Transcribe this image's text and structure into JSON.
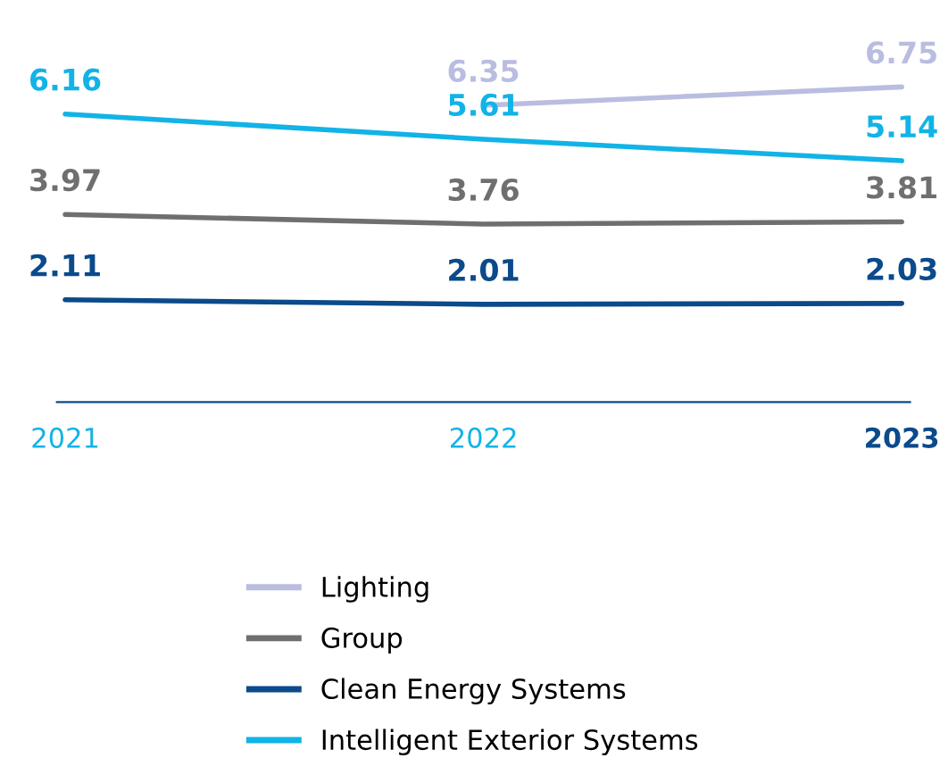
{
  "chart_data": {
    "type": "line",
    "categories": [
      "2021",
      "2022",
      "2023"
    ],
    "series": [
      {
        "name": "Lighting",
        "color": "#b9bde0",
        "values": [
          null,
          6.35,
          6.75
        ]
      },
      {
        "name": "Group",
        "color": "#6f6f6f",
        "values": [
          3.97,
          3.76,
          3.81
        ]
      },
      {
        "name": "Clean Energy Systems",
        "color": "#0b4a8b",
        "values": [
          2.11,
          2.01,
          2.03
        ]
      },
      {
        "name": "Intelligent Exterior Systems",
        "color": "#12b3e6",
        "values": [
          6.16,
          5.61,
          5.14
        ]
      }
    ],
    "tick_labels": "x",
    "data_labels": true,
    "legend": "bottom",
    "grid": false,
    "marker": "none",
    "line_style": "solid"
  }
}
